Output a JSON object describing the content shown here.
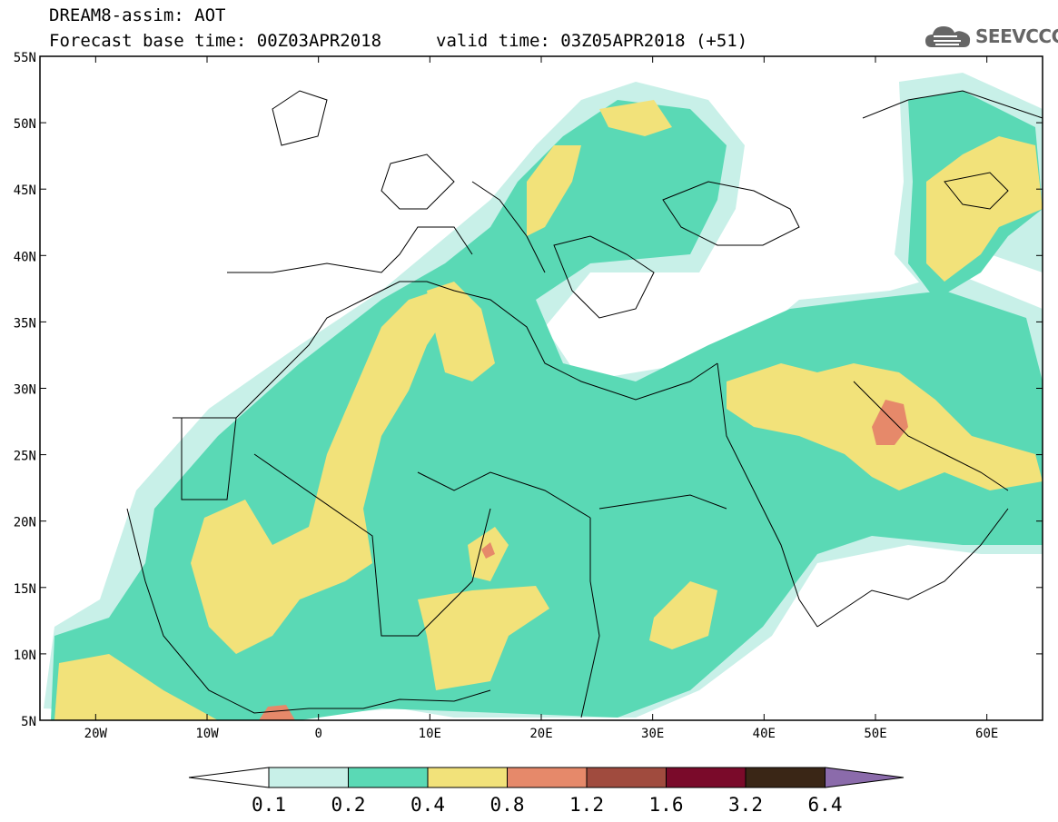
{
  "header": {
    "title_line1": "DREAM8-assim: AOT",
    "title_line2": "Forecast base time: 00Z03APR2018",
    "valid_time": "valid time: 03Z05APR2018 (+51)"
  },
  "logo": {
    "text": "SEEVCCC",
    "icon": "cloud-icon"
  },
  "map": {
    "lat_labels": [
      "55N",
      "50N",
      "45N",
      "40N",
      "35N",
      "30N",
      "25N",
      "20N",
      "15N",
      "10N",
      "5N"
    ],
    "lon_labels": [
      "20W",
      "10W",
      "0",
      "10E",
      "20E",
      "30E",
      "40E",
      "50E",
      "60E"
    ],
    "lon_range": [
      -25,
      65
    ],
    "lat_range": [
      5,
      55
    ]
  },
  "colorbar": {
    "labels": [
      "0.1",
      "0.2",
      "0.4",
      "0.8",
      "1.2",
      "1.6",
      "3.2",
      "6.4"
    ],
    "colors": [
      "#c8f0e8",
      "#5ad9b5",
      "#f2e27a",
      "#e6896a",
      "#a04b3e",
      "#7a0a2a",
      "#3a2616",
      "#8b6bab"
    ]
  }
}
